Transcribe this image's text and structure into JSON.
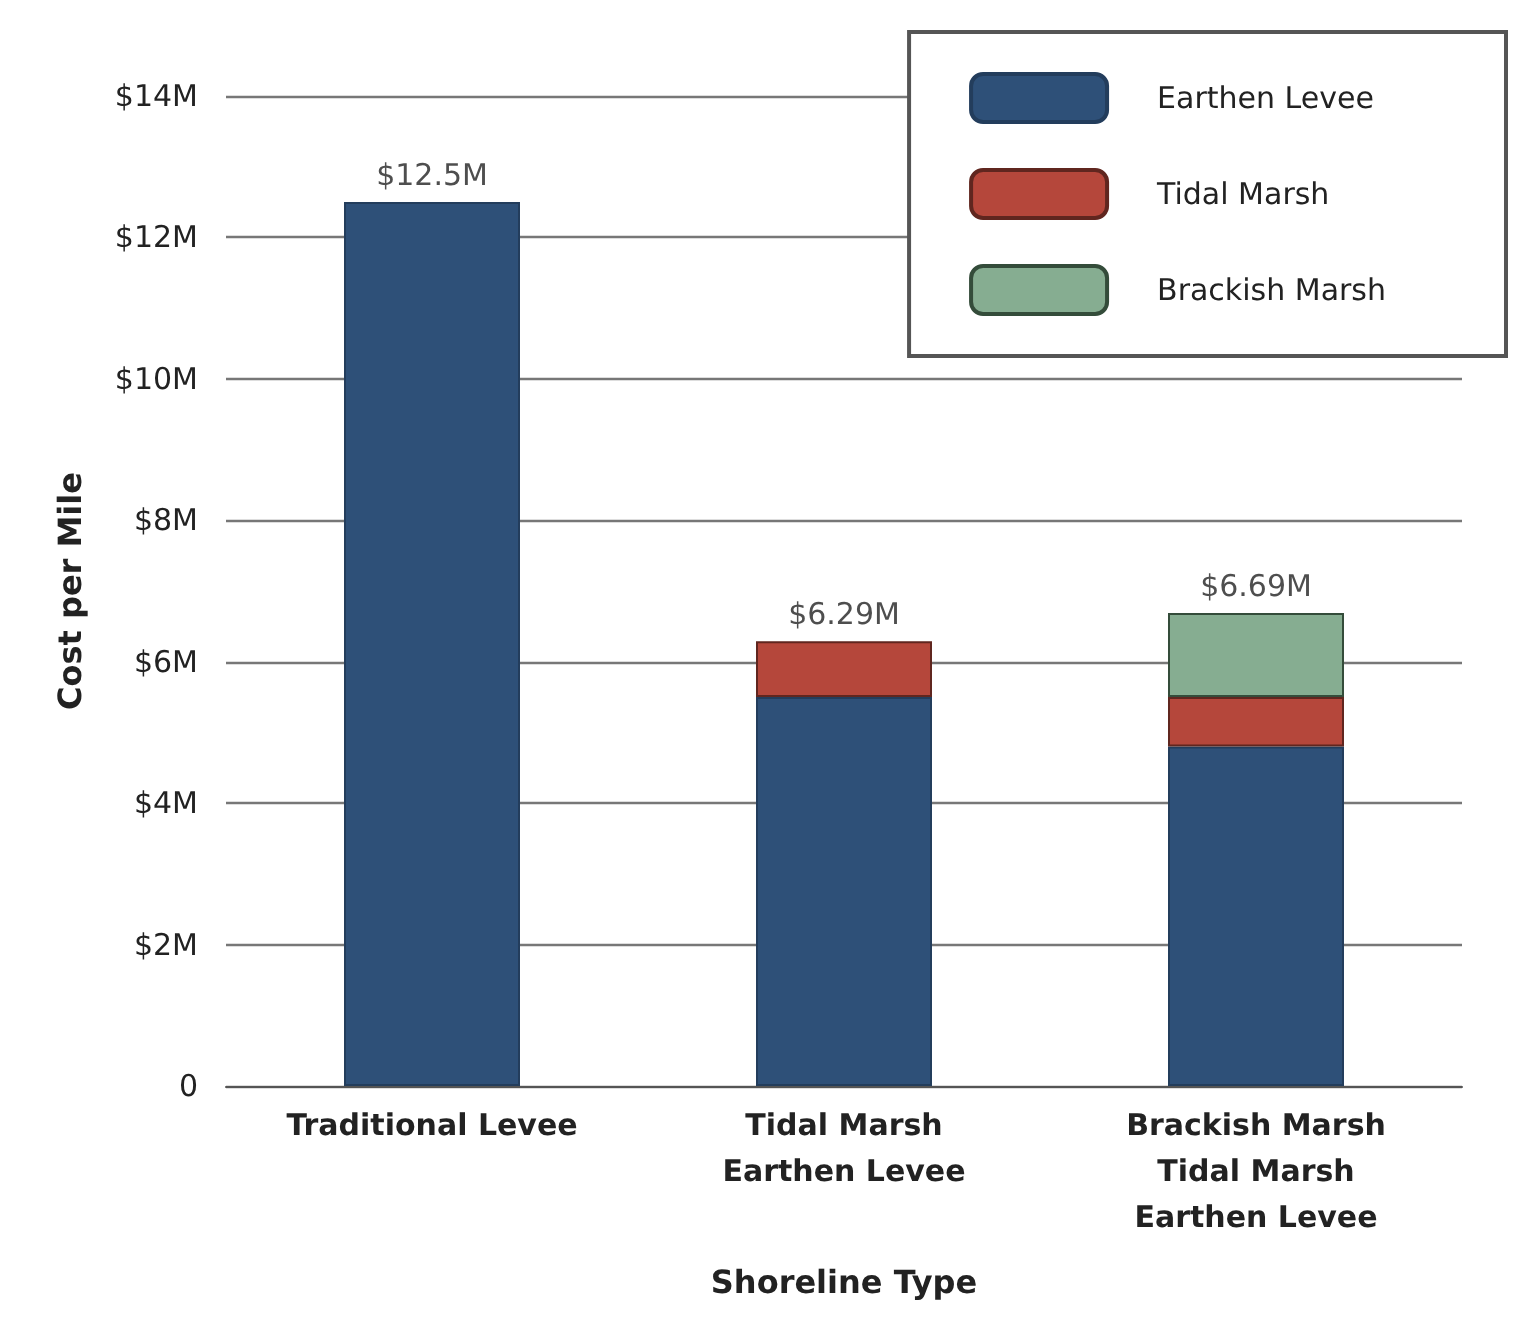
{
  "chart_data": {
    "type": "bar",
    "stacked": true,
    "xlabel": "Shoreline Type",
    "ylabel": "Cost per Mile",
    "categories": [
      "Traditional Levee",
      "Tidal Marsh\nEarthen Levee",
      "Brackish Marsh\nTidal Marsh\nEarthen Levee"
    ],
    "series": [
      {
        "name": "Earthen Levee",
        "color": "#2e5078",
        "values": [
          12.5,
          5.5,
          4.8
        ]
      },
      {
        "name": "Tidal Marsh",
        "color": "#b5473b",
        "values": [
          null,
          0.79,
          0.7
        ]
      },
      {
        "name": "Brackish Marsh",
        "color": "#86ad91",
        "values": [
          null,
          null,
          1.19
        ]
      }
    ],
    "totals": [
      "$12.5M",
      "$6.29M",
      "$6.69M"
    ],
    "ylim": [
      0,
      14
    ],
    "yticks": [
      {
        "value": 0,
        "label": "0"
      },
      {
        "value": 2,
        "label": "$2M"
      },
      {
        "value": 4,
        "label": "$4M"
      },
      {
        "value": 6,
        "label": "$6M"
      },
      {
        "value": 8,
        "label": "$8M"
      },
      {
        "value": 10,
        "label": "$10M"
      },
      {
        "value": 12,
        "label": "$12M"
      },
      {
        "value": 14,
        "label": "$14M"
      }
    ],
    "grid": "y",
    "legend": "top right"
  }
}
